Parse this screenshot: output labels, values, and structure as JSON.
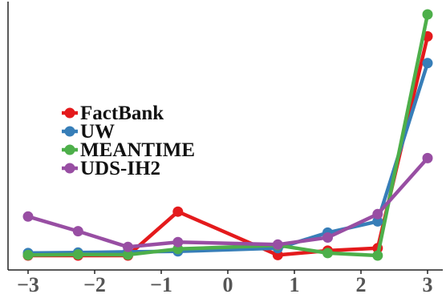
{
  "chart_data": {
    "type": "line",
    "title": "",
    "xlabel": "",
    "ylabel": "",
    "xlim": [
      -3.0,
      3.0
    ],
    "ylim": [
      0,
      1
    ],
    "x_ticks": [
      "−3",
      "−2",
      "−1",
      "0",
      "1",
      "2",
      "3"
    ],
    "x_tick_values": [
      -3,
      -2,
      -1,
      0,
      1,
      2,
      3
    ],
    "y_ticks_shown": false,
    "grid": false,
    "legend_position": "left-middle",
    "series": [
      {
        "name": "FactBank",
        "color": "#e41a1c",
        "x": [
          -3.0,
          -2.25,
          -1.5,
          -0.75,
          0.75,
          1.5,
          2.25,
          3.0
        ],
        "y": [
          0.01,
          0.01,
          0.01,
          0.19,
          0.012,
          0.03,
          0.04,
          0.91
        ]
      },
      {
        "name": "UW",
        "color": "#377eb8",
        "x": [
          -3.0,
          -2.25,
          -1.5,
          -0.75,
          0.75,
          1.5,
          2.25,
          3.0
        ],
        "y": [
          0.02,
          0.022,
          0.025,
          0.027,
          0.04,
          0.104,
          0.15,
          0.8
        ]
      },
      {
        "name": "MEANTIME",
        "color": "#4daf4a",
        "x": [
          -3.0,
          -2.25,
          -1.5,
          -0.75,
          0.75,
          1.5,
          2.25,
          3.0
        ],
        "y": [
          0.012,
          0.014,
          0.013,
          0.037,
          0.052,
          0.02,
          0.01,
          1.0
        ]
      },
      {
        "name": "UDS-IH2",
        "color": "#984ea3",
        "x": [
          -3.0,
          -2.25,
          -1.5,
          -0.75,
          0.75,
          1.5,
          2.25,
          3.0
        ],
        "y": [
          0.17,
          0.11,
          0.045,
          0.065,
          0.055,
          0.084,
          0.18,
          0.41
        ]
      }
    ]
  }
}
